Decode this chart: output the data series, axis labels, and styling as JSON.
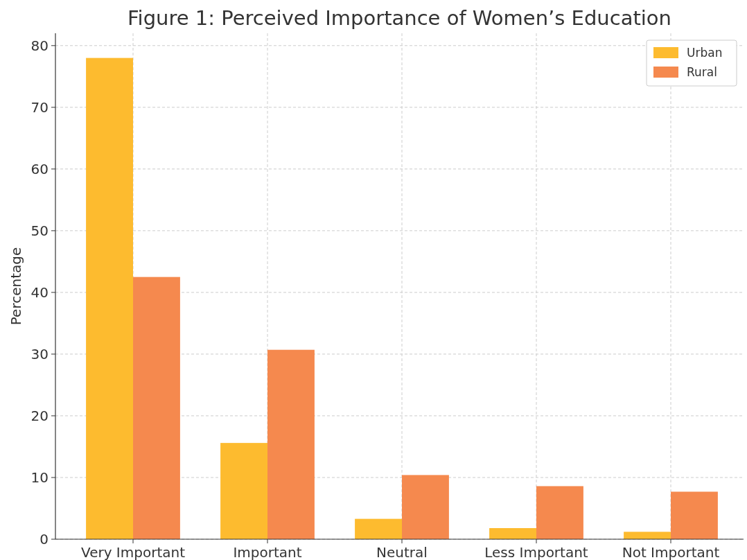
{
  "chart_data": {
    "type": "bar",
    "title": "Figure 1: Perceived Importance of Women’s Education",
    "ylabel": "Percentage",
    "categories": [
      "Very Important",
      "Important",
      "Neutral",
      "Less Important",
      "Not Important"
    ],
    "series": [
      {
        "name": "Urban",
        "color": "#fdbb2f",
        "values": [
          78,
          15.6,
          3.3,
          1.8,
          1.2
        ]
      },
      {
        "name": "Rural",
        "color": "#f5894e",
        "values": [
          42.5,
          30.7,
          10.4,
          8.6,
          7.7
        ]
      }
    ],
    "ylim": [
      0,
      82
    ],
    "yticks": [
      0,
      10,
      20,
      30,
      40,
      50,
      60,
      70,
      80
    ],
    "grid": true,
    "legend": "top right"
  }
}
